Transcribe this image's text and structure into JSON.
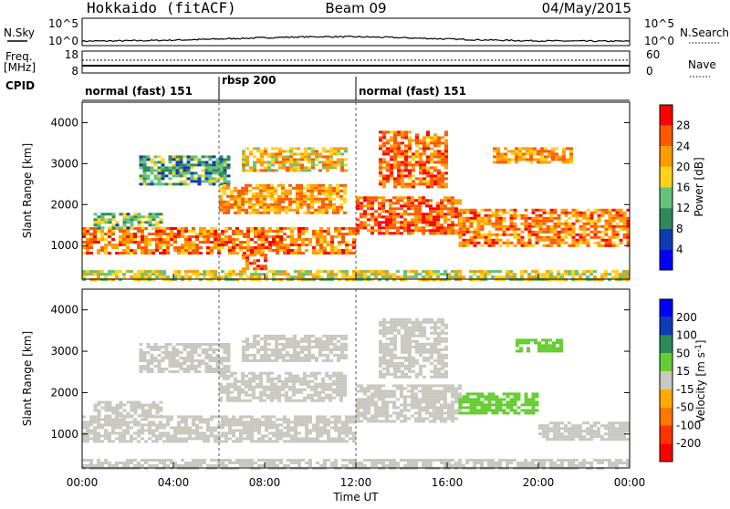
{
  "header": {
    "station": "Hokkaido (fitACF)",
    "beam": "Beam 09",
    "date": "04/May/2015"
  },
  "strips": {
    "nsky_label": "N.Sky",
    "nsearch_label": "N.Search",
    "count_ticks": [
      "10^5",
      "10^0"
    ],
    "freq_label_1": "Freq.",
    "freq_label_2": "[MHz]",
    "freq_ticks": [
      "18",
      "8"
    ],
    "nave_label": "Nave",
    "nave_ticks": [
      "60",
      "0"
    ],
    "cpid_label": "CPID"
  },
  "modes": [
    {
      "label": "normal (fast) 151",
      "start_hour": 0,
      "end_hour": 6
    },
    {
      "label": "rbsp 200",
      "start_hour": 6,
      "end_hour": 12
    },
    {
      "label": "normal (fast) 151",
      "start_hour": 12,
      "end_hour": 24
    }
  ],
  "xaxis": {
    "label": "Time UT",
    "ticks": [
      "00:00",
      "04:00",
      "08:00",
      "12:00",
      "16:00",
      "20:00",
      "00:00"
    ],
    "range_hours": [
      0,
      24
    ]
  },
  "yaxis": {
    "label": "Slant Range [km]",
    "ticks": [
      1000,
      2000,
      3000,
      4000
    ],
    "range_km": [
      180,
      4500
    ]
  },
  "chart_data": [
    {
      "type": "heatmap",
      "panel": "power",
      "colorbar_label": "Power [dB]",
      "colorbar_ticks": [
        4,
        8,
        12,
        16,
        20,
        24,
        28
      ],
      "colorbar_range": [
        0,
        32
      ],
      "colormap": [
        "#0000ff",
        "#0e3cb4",
        "#2e8b57",
        "#66c27a",
        "#ffd21a",
        "#ff9d00",
        "#ff5a00",
        "#ff0000"
      ],
      "bands": [
        {
          "t": [
            0.0,
            12.0
          ],
          "r": [
            800,
            1450
          ],
          "v": 24
        },
        {
          "t": [
            0.5,
            3.5
          ],
          "r": [
            1450,
            1800
          ],
          "v": 13
        },
        {
          "t": [
            2.5,
            6.5
          ],
          "r": [
            2500,
            3200
          ],
          "v": 12
        },
        {
          "t": [
            6.0,
            11.5
          ],
          "r": [
            1800,
            2500
          ],
          "v": 22
        },
        {
          "t": [
            7.0,
            11.5
          ],
          "r": [
            2800,
            3400
          ],
          "v": 20
        },
        {
          "t": [
            7.0,
            8.0
          ],
          "r": [
            450,
            800
          ],
          "v": 26
        },
        {
          "t": [
            12.0,
            16.5
          ],
          "r": [
            1300,
            2200
          ],
          "v": 26
        },
        {
          "t": [
            13.0,
            16.0
          ],
          "r": [
            2400,
            3800
          ],
          "v": 25
        },
        {
          "t": [
            16.5,
            24.0
          ],
          "r": [
            1000,
            1900
          ],
          "v": 24
        },
        {
          "t": [
            18.0,
            21.5
          ],
          "r": [
            3000,
            3400
          ],
          "v": 22
        },
        {
          "t": [
            0.0,
            24.0
          ],
          "r": [
            180,
            400
          ],
          "v": 18
        }
      ]
    },
    {
      "type": "heatmap",
      "panel": "velocity",
      "colorbar_label": "Velocity [m s^-1]",
      "colorbar_ticks": [
        200,
        100,
        50,
        15,
        -15,
        -50,
        -100,
        -200
      ],
      "colorbar_range": [
        -250,
        250
      ],
      "colormap": [
        "#0000ff",
        "#0e3cb4",
        "#2e8b57",
        "#66cc33",
        "#c8c8c0",
        "#ffaa00",
        "#ff7700",
        "#ff3300",
        "#ff0000"
      ],
      "bands": [
        {
          "t": [
            0.0,
            12.0
          ],
          "r": [
            800,
            1450
          ],
          "v": 0
        },
        {
          "t": [
            0.5,
            3.5
          ],
          "r": [
            1450,
            1800
          ],
          "v": 0
        },
        {
          "t": [
            2.5,
            6.5
          ],
          "r": [
            2500,
            3200
          ],
          "v": 0
        },
        {
          "t": [
            6.0,
            11.5
          ],
          "r": [
            1800,
            2500
          ],
          "v": 0
        },
        {
          "t": [
            7.0,
            11.5
          ],
          "r": [
            2800,
            3400
          ],
          "v": 0
        },
        {
          "t": [
            12.0,
            16.5
          ],
          "r": [
            1300,
            2200
          ],
          "v": 0
        },
        {
          "t": [
            13.0,
            16.0
          ],
          "r": [
            2400,
            3800
          ],
          "v": 0
        },
        {
          "t": [
            16.5,
            20.0
          ],
          "r": [
            1500,
            2000
          ],
          "v": 60
        },
        {
          "t": [
            19.0,
            21.0
          ],
          "r": [
            3000,
            3300
          ],
          "v": 60
        },
        {
          "t": [
            20.0,
            24.0
          ],
          "r": [
            900,
            1300
          ],
          "v": 0
        },
        {
          "t": [
            0.0,
            24.0
          ],
          "r": [
            180,
            400
          ],
          "v": 0
        }
      ]
    }
  ]
}
